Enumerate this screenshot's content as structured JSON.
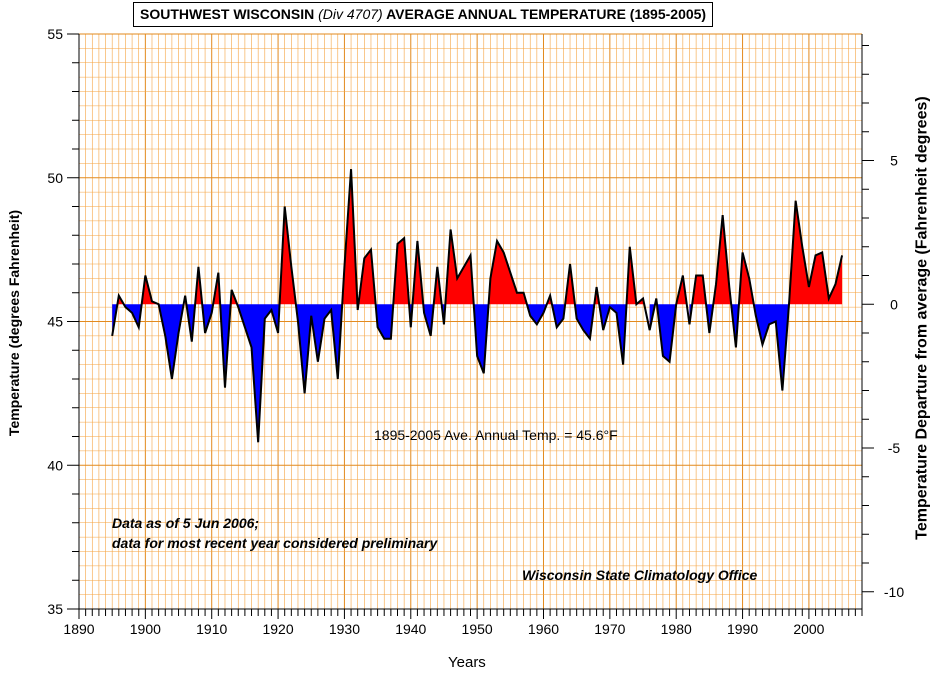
{
  "header": {
    "title_prefix": "SOUTHWEST WISCONSIN",
    "title_div": "(Div 4707)",
    "title_suffix": "AVERAGE  ANNUAL TEMPERATURE (1895-2005)"
  },
  "annotations": {
    "average_note": "1895-2005 Ave. Annual Temp. = 45.6°F",
    "data_note_line1": "Data as of 5 Jun 2006;",
    "data_note_line2": "data for most recent year considered preliminary",
    "source": "Wisconsin State Climatology Office"
  },
  "colors": {
    "above": "#ff0000",
    "below": "#0000ff",
    "grid": "#f5a340",
    "grid_major": "#e28a1e",
    "outline": "#000000"
  },
  "chart_data": {
    "type": "area",
    "title": "SOUTHWEST WISCONSIN (Div 4707) AVERAGE  ANNUAL TEMPERATURE (1895-2005)",
    "xlabel": "Years",
    "ylabel": "Temperature  (degrees Fahrenheit)",
    "y2label": "Temperature Departure from average (Fahrenheit degrees)",
    "xlim": [
      1890,
      2008
    ],
    "ylim": [
      35,
      55
    ],
    "y2lim": [
      -10.6,
      9.4
    ],
    "baseline": 45.6,
    "x_ticks": [
      1890,
      1900,
      1910,
      1920,
      1930,
      1940,
      1950,
      1960,
      1970,
      1980,
      1990,
      2000
    ],
    "y_ticks": [
      35,
      40,
      45,
      50,
      55
    ],
    "y2_ticks": [
      -10,
      -5,
      0,
      5
    ],
    "grid": true,
    "fill_above_baseline": "red",
    "fill_below_baseline": "blue",
    "series": [
      {
        "x": [
          1895,
          1896,
          1897,
          1898,
          1899,
          1900,
          1901,
          1902,
          1903,
          1904,
          1905,
          1906,
          1907,
          1908,
          1909,
          1910,
          1911,
          1912,
          1913,
          1914,
          1915,
          1916,
          1917,
          1918,
          1919,
          1920,
          1921,
          1922,
          1923,
          1924,
          1925,
          1926,
          1927,
          1928,
          1929,
          1930,
          1931,
          1932,
          1933,
          1934,
          1935,
          1936,
          1937,
          1938,
          1939,
          1940,
          1941,
          1942,
          1943,
          1944,
          1945,
          1946,
          1947,
          1948,
          1949,
          1950,
          1951,
          1952,
          1953,
          1954,
          1955,
          1956,
          1957,
          1958,
          1959,
          1960,
          1961,
          1962,
          1963,
          1964,
          1965,
          1966,
          1967,
          1968,
          1969,
          1970,
          1971,
          1972,
          1973,
          1974,
          1975,
          1976,
          1977,
          1978,
          1979,
          1980,
          1981,
          1982,
          1983,
          1984,
          1985,
          1986,
          1987,
          1988,
          1989,
          1990,
          1991,
          1992,
          1993,
          1994,
          1995,
          1996,
          1997,
          1998,
          1999,
          2000,
          2001,
          2002,
          2003,
          2004,
          2005
        ],
        "values": [
          44.5,
          45.9,
          45.5,
          45.3,
          44.8,
          46.6,
          45.7,
          45.6,
          44.5,
          43.0,
          44.6,
          45.9,
          44.3,
          46.9,
          44.6,
          45.3,
          46.7,
          42.7,
          46.1,
          45.5,
          44.8,
          44.1,
          40.8,
          45.1,
          45.4,
          44.6,
          49.0,
          46.9,
          45.0,
          42.5,
          45.2,
          43.6,
          45.1,
          45.4,
          43.0,
          46.9,
          50.3,
          45.4,
          47.2,
          47.5,
          44.8,
          44.4,
          44.4,
          47.7,
          47.9,
          44.8,
          47.8,
          45.3,
          44.5,
          46.9,
          44.9,
          48.2,
          46.5,
          46.9,
          47.3,
          43.8,
          43.2,
          46.5,
          47.8,
          47.4,
          46.7,
          46.0,
          46.0,
          45.2,
          44.9,
          45.3,
          45.9,
          44.8,
          45.1,
          47.0,
          45.1,
          44.7,
          44.4,
          46.2,
          44.7,
          45.5,
          45.3,
          43.5,
          47.6,
          45.6,
          45.8,
          44.7,
          45.8,
          43.8,
          43.6,
          45.6,
          46.6,
          44.9,
          46.6,
          46.6,
          44.6,
          46.3,
          48.7,
          46.2,
          44.1,
          47.4,
          46.5,
          45.2,
          44.2,
          44.9,
          45.0,
          42.6,
          45.6,
          49.2,
          47.6,
          46.2,
          47.3,
          47.4,
          45.8,
          46.3,
          47.3
        ]
      }
    ]
  }
}
